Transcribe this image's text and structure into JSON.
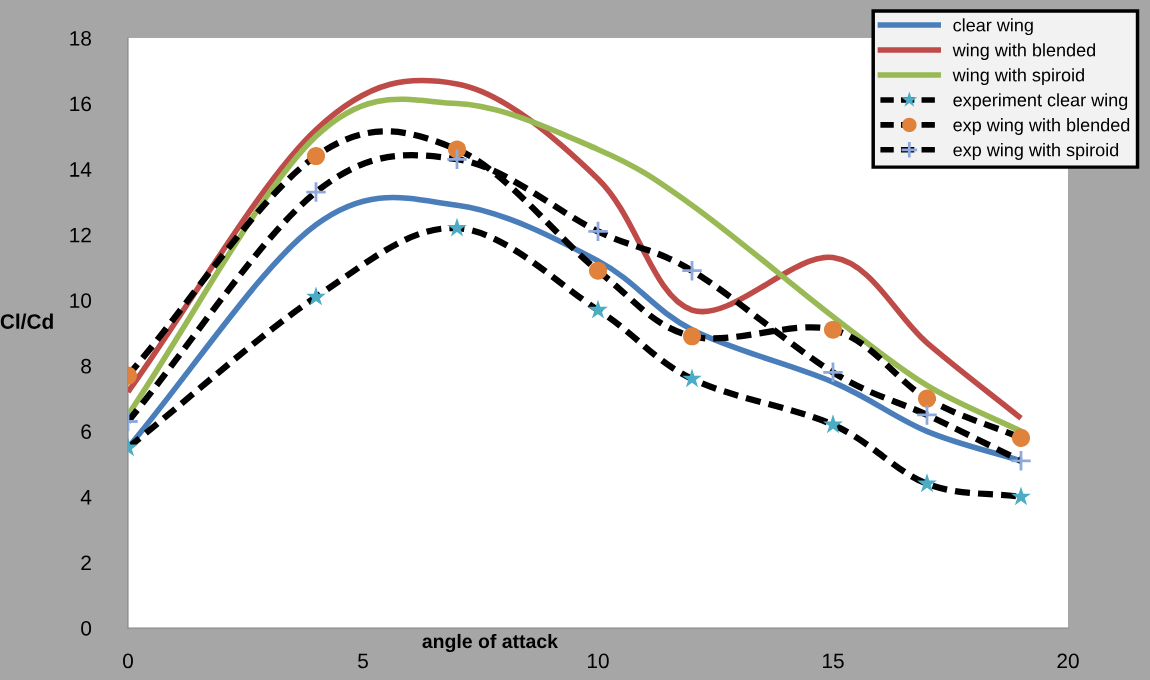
{
  "chart_data": {
    "type": "line",
    "xlabel": "angle of attack",
    "ylabel": "Cl/Cd",
    "xlim": [
      0,
      20
    ],
    "xticks": [
      0,
      5,
      10,
      15,
      20
    ],
    "ylim": [
      0,
      18
    ],
    "yticks": [
      0,
      2,
      4,
      6,
      8,
      10,
      12,
      14,
      16,
      18
    ],
    "grid": false,
    "legend": "top right",
    "x": [
      0,
      4,
      7,
      10,
      12,
      15,
      17,
      19
    ],
    "series": [
      {
        "name": "clear wing",
        "color": "#4a7ebb",
        "line_style": "solid",
        "marker": "none",
        "values": [
          5.5,
          12.3,
          12.9,
          11.2,
          9.1,
          7.5,
          6.0,
          5.1
        ]
      },
      {
        "name": "wing with blended",
        "color": "#be4b48",
        "line_style": "solid",
        "marker": "none",
        "values": [
          7.2,
          15.2,
          16.6,
          13.7,
          9.7,
          11.3,
          8.7,
          6.4
        ]
      },
      {
        "name": "wing with spiroid",
        "color": "#98b954",
        "line_style": "solid",
        "marker": "none",
        "values": [
          6.5,
          15.0,
          16.0,
          14.6,
          12.9,
          9.5,
          7.4,
          6.0
        ]
      },
      {
        "name": "experiment clear wing",
        "color": "#000000",
        "colors": [
          "#4bacc6",
          "#4bacc6",
          "#4bacc6",
          "#4bacc6",
          "#4bacc6",
          "#4bacc6",
          "#4bacc6",
          "#4bacc6"
        ],
        "line_style": "dashed",
        "marker": "star",
        "values": [
          5.5,
          10.1,
          12.2,
          9.7,
          7.6,
          6.2,
          4.4,
          4.0
        ]
      },
      {
        "name": "exp wing with blended",
        "color": "#000000",
        "colors": [
          "#e0823c",
          "#e0823c",
          "#e0823c",
          "#e0823c",
          "#e0823c",
          "#e0823c",
          "#e0823c",
          "#e0823c"
        ],
        "line_style": "dashed",
        "marker": "circle",
        "values": [
          7.7,
          14.4,
          14.6,
          10.9,
          8.9,
          9.1,
          7.0,
          5.8
        ]
      },
      {
        "name": "exp wing with spiroid",
        "color": "#000000",
        "colors": [
          "#8ea9db",
          "#8ea9db",
          "#8ea9db",
          "#8ea9db",
          "#8ea9db",
          "#8ea9db",
          "#8ea9db",
          "#8ea9db"
        ],
        "line_style": "dashed",
        "marker": "cross",
        "values": [
          6.3,
          13.3,
          14.3,
          12.1,
          10.9,
          7.8,
          6.5,
          5.1
        ]
      }
    ]
  }
}
